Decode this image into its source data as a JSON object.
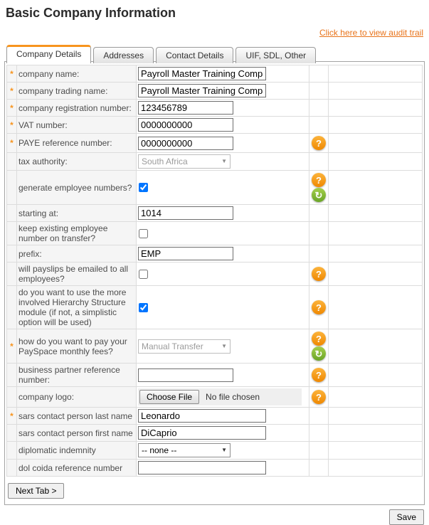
{
  "header": {
    "title": "Basic Company Information",
    "audit_link_label": "Click here to view audit trail"
  },
  "tabs": [
    {
      "label": "Company Details",
      "active": true
    },
    {
      "label": "Addresses",
      "active": false
    },
    {
      "label": "Contact Details",
      "active": false
    },
    {
      "label": "UIF, SDL, Other",
      "active": false
    }
  ],
  "icons": {
    "help_glyph": "?",
    "refresh_glyph": "↻",
    "dropdown_glyph": "▼"
  },
  "form": {
    "rows": [
      {
        "marker": "*",
        "label": "company name:",
        "value": "Payroll Master Training Compan"
      },
      {
        "marker": "*",
        "label": "company trading name:",
        "value": "Payroll Master Training Compan"
      },
      {
        "marker": "*",
        "label": "company registration number:",
        "value": "123456789"
      },
      {
        "marker": "*",
        "label": "VAT number:",
        "value": "0000000000"
      },
      {
        "marker": "*",
        "label": "PAYE reference number:",
        "value": "0000000000"
      },
      {
        "marker": "",
        "label": "tax authority:",
        "value": "South Africa"
      },
      {
        "marker": "",
        "label": "generate employee numbers?",
        "checked": "checked"
      },
      {
        "marker": "",
        "label": "starting at:",
        "value": "1014"
      },
      {
        "marker": "",
        "label": "keep existing employee number on transfer?"
      },
      {
        "marker": "",
        "label": "prefix:",
        "value": "EMP"
      },
      {
        "marker": "",
        "label": "will payslips be emailed to all employees?"
      },
      {
        "marker": "",
        "label": "do you want to use the more involved Hierarchy Structure module (if not, a simplistic option will be used)",
        "checked": "checked"
      },
      {
        "marker": "*",
        "label": "how do you want to pay your PaySpace monthly fees?",
        "value": "Manual Transfer"
      },
      {
        "marker": "",
        "label": "business partner reference number:",
        "value": ""
      },
      {
        "marker": "",
        "label": "company logo:"
      },
      {
        "marker": "*",
        "label": "sars contact person last name",
        "value": "Leonardo"
      },
      {
        "marker": "",
        "label": "sars contact person first name",
        "value": "DiCaprio"
      },
      {
        "marker": "",
        "label": "diplomatic indemnity",
        "value": "-- none --"
      },
      {
        "marker": "",
        "label": "dol coida reference number",
        "value": ""
      }
    ]
  },
  "file_control": {
    "button_label": "Choose File",
    "status_text": "No file chosen"
  },
  "footer": {
    "next_tab_label": "Next Tab >",
    "save_label": "Save"
  },
  "colors": {
    "accent_orange": "#f7941e",
    "link_orange": "#e8731a",
    "refresh_green": "#7fb53a",
    "label_cell_bg": "#f5f5f5",
    "table_border": "#dcdcdc"
  }
}
